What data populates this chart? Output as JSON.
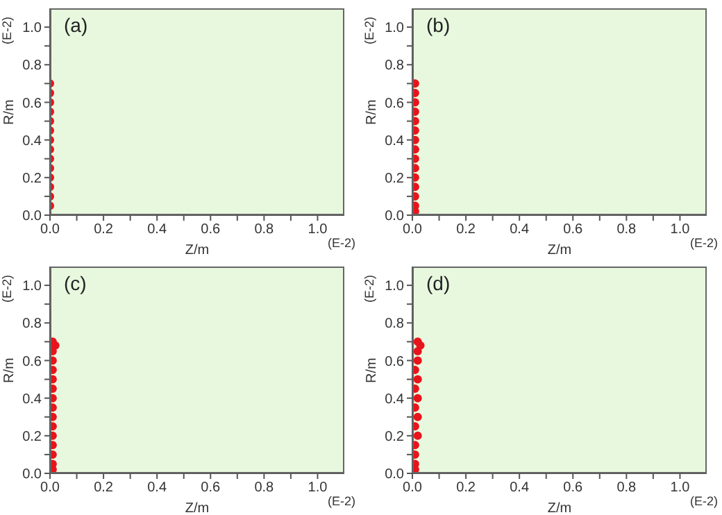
{
  "chart_data": [
    {
      "type": "scatter",
      "title": "(a)",
      "xlabel": "Z/m",
      "ylabel": "R/m",
      "annotations": [
        "(E-2)",
        "(E-2)"
      ],
      "color": "#e8141c",
      "marker": "circle",
      "x": [
        0,
        0,
        0,
        0,
        0,
        0,
        0,
        0,
        0,
        0,
        0,
        0,
        0,
        0
      ],
      "values": [
        0.05,
        0.1,
        0.15,
        0.2,
        0.25,
        0.3,
        0.35,
        0.4,
        0.45,
        0.5,
        0.55,
        0.6,
        0.65,
        0.7
      ],
      "xlim": [
        0,
        1.1
      ],
      "ylim": [
        0,
        1.1
      ],
      "xticks": [
        {
          "value": 0,
          "label": "0.0"
        },
        {
          "value": 0.1,
          "label": null
        },
        {
          "value": 0.2,
          "label": "0.2"
        },
        {
          "value": 0.3,
          "label": null
        },
        {
          "value": 0.4,
          "label": "0.4"
        },
        {
          "value": 0.5,
          "label": null
        },
        {
          "value": 0.6,
          "label": "0.6"
        },
        {
          "value": 0.7,
          "label": null
        },
        {
          "value": 0.8,
          "label": "0.8"
        },
        {
          "value": 0.9,
          "label": null
        },
        {
          "value": 1.0,
          "label": "1.0"
        }
      ],
      "yticks": [
        {
          "value": 0,
          "label": "0.0"
        },
        {
          "value": 0.1,
          "label": null
        },
        {
          "value": 0.2,
          "label": "0.2"
        },
        {
          "value": 0.3,
          "label": null
        },
        {
          "value": 0.4,
          "label": "0.4"
        },
        {
          "value": 0.5,
          "label": null
        },
        {
          "value": 0.6,
          "label": "0.6"
        },
        {
          "value": 0.7,
          "label": null
        },
        {
          "value": 0.8,
          "label": "0.8"
        },
        {
          "value": 0.9,
          "label": null
        },
        {
          "value": 1.0,
          "label": "1.0"
        }
      ]
    },
    {
      "type": "scatter",
      "title": "(b)",
      "xlabel": "Z/m",
      "ylabel": "R/m",
      "annotations": [
        "(E-2)",
        "(E-2)"
      ],
      "color": "#e8141c",
      "marker": "circle",
      "x": [
        0.01,
        0.01,
        0.01,
        0.01,
        0.01,
        0.01,
        0.01,
        0.01,
        0.01,
        0.01,
        0.01,
        0.01,
        0.01,
        0.01,
        0.01
      ],
      "values": [
        0.02,
        0.05,
        0.1,
        0.15,
        0.2,
        0.25,
        0.3,
        0.35,
        0.4,
        0.45,
        0.5,
        0.55,
        0.6,
        0.65,
        0.7
      ],
      "xlim": [
        0,
        1.1
      ],
      "ylim": [
        0,
        1.1
      ],
      "xticks": [
        {
          "value": 0,
          "label": "0.0"
        },
        {
          "value": 0.1,
          "label": null
        },
        {
          "value": 0.2,
          "label": "0.2"
        },
        {
          "value": 0.3,
          "label": null
        },
        {
          "value": 0.4,
          "label": "0.4"
        },
        {
          "value": 0.5,
          "label": null
        },
        {
          "value": 0.6,
          "label": "0.6"
        },
        {
          "value": 0.7,
          "label": null
        },
        {
          "value": 0.8,
          "label": "0.8"
        },
        {
          "value": 0.9,
          "label": null
        },
        {
          "value": 1.0,
          "label": "1.0"
        }
      ],
      "yticks": [
        {
          "value": 0,
          "label": "0.0"
        },
        {
          "value": 0.1,
          "label": null
        },
        {
          "value": 0.2,
          "label": "0.2"
        },
        {
          "value": 0.3,
          "label": null
        },
        {
          "value": 0.4,
          "label": "0.4"
        },
        {
          "value": 0.5,
          "label": null
        },
        {
          "value": 0.6,
          "label": "0.6"
        },
        {
          "value": 0.7,
          "label": null
        },
        {
          "value": 0.8,
          "label": "0.8"
        },
        {
          "value": 0.9,
          "label": null
        },
        {
          "value": 1.0,
          "label": "1.0"
        }
      ]
    },
    {
      "type": "scatter",
      "title": "(c)",
      "xlabel": "Z/m",
      "ylabel": "R/m",
      "annotations": [
        "(E-2)",
        "(E-2)"
      ],
      "color": "#e8141c",
      "marker": "circle",
      "x": [
        0.01,
        0.01,
        0.01,
        0.01,
        0.01,
        0.01,
        0.01,
        0.01,
        0.01,
        0.01,
        0.01,
        0.01,
        0.01,
        0.01,
        0.02,
        0.01
      ],
      "values": [
        0.02,
        0.05,
        0.1,
        0.15,
        0.2,
        0.25,
        0.3,
        0.35,
        0.4,
        0.45,
        0.5,
        0.55,
        0.6,
        0.65,
        0.68,
        0.7
      ],
      "xlim": [
        0,
        1.1
      ],
      "ylim": [
        0,
        1.1
      ],
      "xticks": [
        {
          "value": 0,
          "label": "0.0"
        },
        {
          "value": 0.1,
          "label": null
        },
        {
          "value": 0.2,
          "label": "0.2"
        },
        {
          "value": 0.3,
          "label": null
        },
        {
          "value": 0.4,
          "label": "0.4"
        },
        {
          "value": 0.5,
          "label": null
        },
        {
          "value": 0.6,
          "label": "0.6"
        },
        {
          "value": 0.7,
          "label": null
        },
        {
          "value": 0.8,
          "label": "0.8"
        },
        {
          "value": 0.9,
          "label": null
        },
        {
          "value": 1.0,
          "label": "1.0"
        }
      ],
      "yticks": [
        {
          "value": 0,
          "label": "0.0"
        },
        {
          "value": 0.1,
          "label": null
        },
        {
          "value": 0.2,
          "label": "0.2"
        },
        {
          "value": 0.3,
          "label": null
        },
        {
          "value": 0.4,
          "label": "0.4"
        },
        {
          "value": 0.5,
          "label": null
        },
        {
          "value": 0.6,
          "label": "0.6"
        },
        {
          "value": 0.7,
          "label": null
        },
        {
          "value": 0.8,
          "label": "0.8"
        },
        {
          "value": 0.9,
          "label": null
        },
        {
          "value": 1.0,
          "label": "1.0"
        }
      ]
    },
    {
      "type": "scatter",
      "title": "(d)",
      "xlabel": "Z/m",
      "ylabel": "R/m",
      "annotations": [
        "(E-2)",
        "(E-2)"
      ],
      "color": "#e8141c",
      "marker": "circle",
      "x": [
        0.01,
        0.01,
        0.01,
        0.01,
        0.02,
        0.01,
        0.02,
        0.01,
        0.02,
        0.01,
        0.02,
        0.01,
        0.02,
        0.02,
        0.03,
        0.02
      ],
      "values": [
        0.02,
        0.05,
        0.1,
        0.15,
        0.2,
        0.25,
        0.3,
        0.35,
        0.4,
        0.45,
        0.5,
        0.55,
        0.6,
        0.65,
        0.68,
        0.7
      ],
      "xlim": [
        0,
        1.1
      ],
      "ylim": [
        0,
        1.1
      ],
      "xticks": [
        {
          "value": 0,
          "label": "0.0"
        },
        {
          "value": 0.1,
          "label": null
        },
        {
          "value": 0.2,
          "label": "0.2"
        },
        {
          "value": 0.3,
          "label": null
        },
        {
          "value": 0.4,
          "label": "0.4"
        },
        {
          "value": 0.5,
          "label": null
        },
        {
          "value": 0.6,
          "label": "0.6"
        },
        {
          "value": 0.7,
          "label": null
        },
        {
          "value": 0.8,
          "label": "0.8"
        },
        {
          "value": 0.9,
          "label": null
        },
        {
          "value": 1.0,
          "label": "1.0"
        }
      ],
      "yticks": [
        {
          "value": 0,
          "label": "0.0"
        },
        {
          "value": 0.1,
          "label": null
        },
        {
          "value": 0.2,
          "label": "0.2"
        },
        {
          "value": 0.3,
          "label": null
        },
        {
          "value": 0.4,
          "label": "0.4"
        },
        {
          "value": 0.5,
          "label": null
        },
        {
          "value": 0.6,
          "label": "0.6"
        },
        {
          "value": 0.7,
          "label": null
        },
        {
          "value": 0.8,
          "label": "0.8"
        },
        {
          "value": 0.9,
          "label": null
        },
        {
          "value": 1.0,
          "label": "1.0"
        }
      ]
    }
  ]
}
